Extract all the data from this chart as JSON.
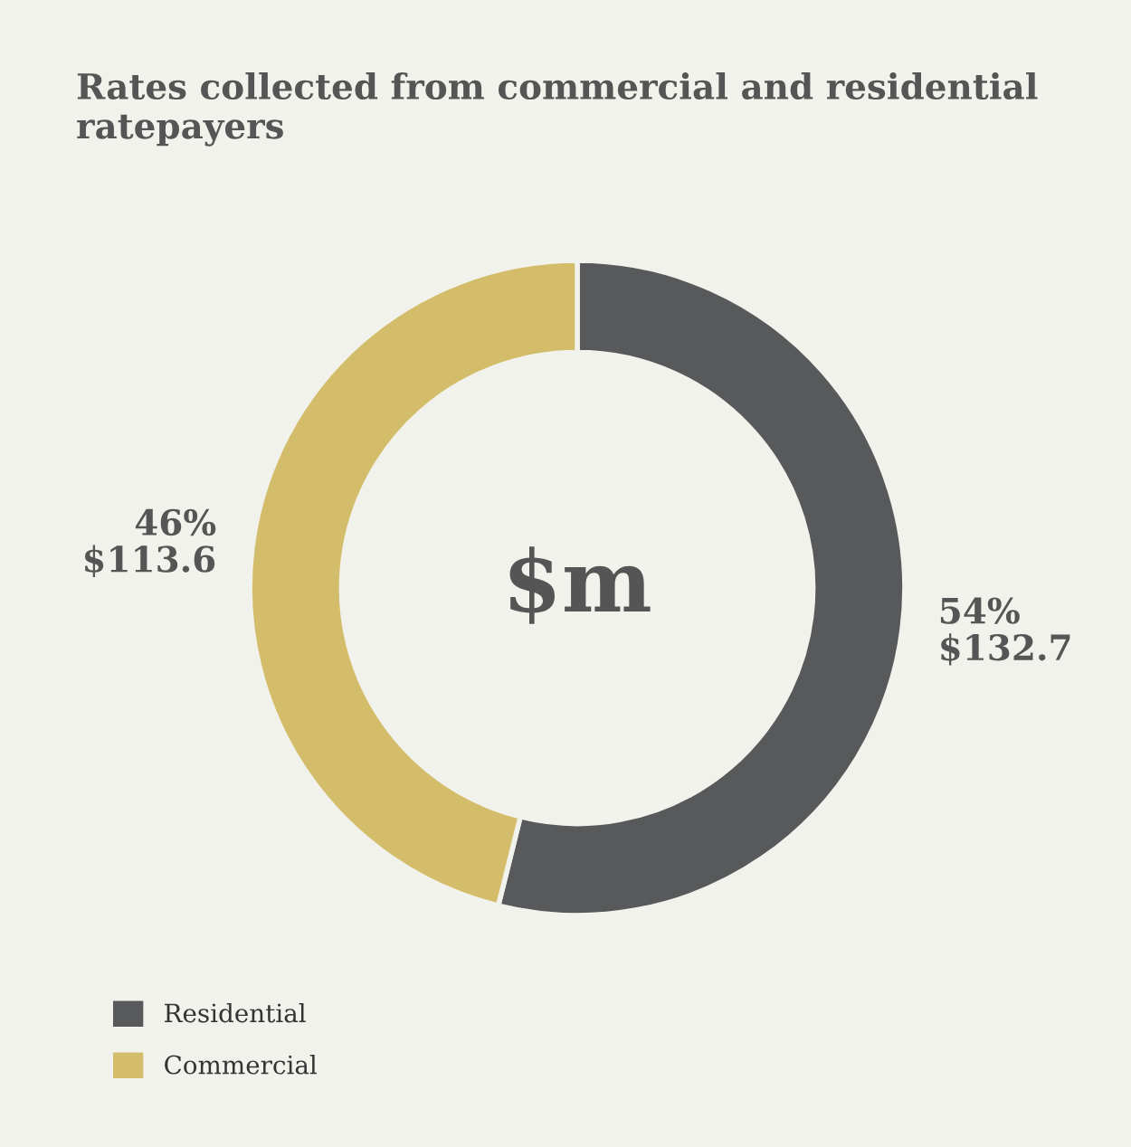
{
  "chart_data": {
    "type": "donut",
    "title": "Rates collected from commercial and residential ratepayers",
    "categories": [
      "Residential",
      "Commercial"
    ],
    "values": [
      132.7,
      113.6
    ],
    "colors": [
      "#58595b",
      "#d4bd6a"
    ],
    "value_labels": [
      "54%\n$132.7",
      "46%\n$113.6"
    ],
    "annotations": [
      "$m"
    ],
    "legend": "bottom left"
  }
}
